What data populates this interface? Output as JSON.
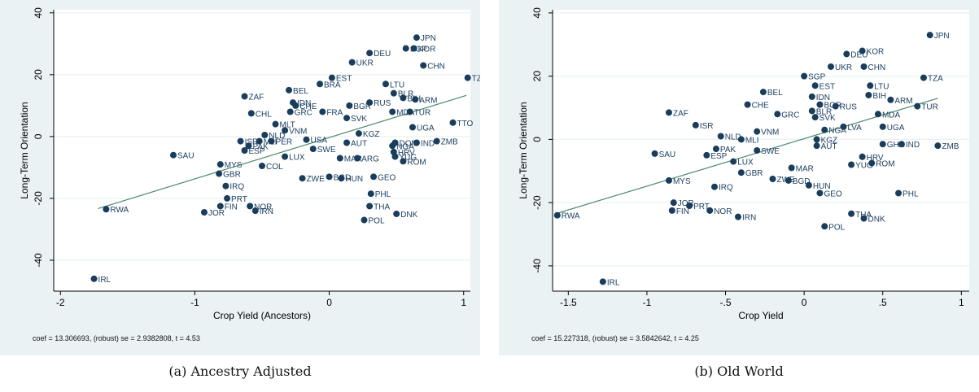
{
  "chart_data": [
    {
      "type": "scatter",
      "caption": "(a)  Ancestry Adjusted",
      "xlabel": "Crop Yield (Ancestors)",
      "ylabel": "Long-Term Orientation",
      "xlim": [
        -2.05,
        1.05
      ],
      "ylim": [
        -50,
        41
      ],
      "xticks": [
        -2,
        -1,
        0,
        1
      ],
      "xtick_labels": [
        "-2",
        "-1",
        "0",
        "1"
      ],
      "yticks": [
        -40,
        -20,
        0,
        20,
        40
      ],
      "ytick_labels": [
        "-40",
        "-20",
        "0",
        "20",
        "40"
      ],
      "grid": true,
      "fit_line": {
        "x": [
          -1.72,
          1.02
        ],
        "y": [
          -23.3,
          13.3
        ]
      },
      "note": "coef = 13.306693, (robust) se = 2.9382808, t = 4.53",
      "colors": {
        "point": "#1a3d5c",
        "line": "#4a8a6a",
        "background": "#eaf2f3",
        "plot": "#ffffff"
      },
      "points": [
        {
          "label": "JPN",
          "x": 0.65,
          "y": 32
        },
        {
          "label": "SGP",
          "x": 0.57,
          "y": 28.5
        },
        {
          "label": "KOR",
          "x": 0.63,
          "y": 28.5
        },
        {
          "label": "DEU",
          "x": 0.3,
          "y": 27
        },
        {
          "label": "UKR",
          "x": 0.17,
          "y": 24
        },
        {
          "label": "CHN",
          "x": 0.7,
          "y": 23
        },
        {
          "label": "TZA",
          "x": 1.03,
          "y": 19
        },
        {
          "label": "EST",
          "x": 0.02,
          "y": 19
        },
        {
          "label": "BRA",
          "x": -0.07,
          "y": 17
        },
        {
          "label": "LTU",
          "x": 0.42,
          "y": 17
        },
        {
          "label": "BLR",
          "x": 0.48,
          "y": 14
        },
        {
          "label": "BIH",
          "x": 0.55,
          "y": 12.5
        },
        {
          "label": "ARM",
          "x": 0.64,
          "y": 12
        },
        {
          "label": "BEL",
          "x": -0.3,
          "y": 15
        },
        {
          "label": "ZAF",
          "x": -0.63,
          "y": 13
        },
        {
          "label": "IDN",
          "x": -0.27,
          "y": 11
        },
        {
          "label": "CHE",
          "x": -0.25,
          "y": 10
        },
        {
          "label": "BGR",
          "x": 0.15,
          "y": 10
        },
        {
          "label": "RUS",
          "x": 0.3,
          "y": 11
        },
        {
          "label": "GRC",
          "x": -0.29,
          "y": 8
        },
        {
          "label": "FRA",
          "x": -0.05,
          "y": 8
        },
        {
          "label": "MDA",
          "x": 0.47,
          "y": 8
        },
        {
          "label": "TUR",
          "x": 0.6,
          "y": 8
        },
        {
          "label": "SVK",
          "x": 0.13,
          "y": 6
        },
        {
          "label": "CHL",
          "x": -0.58,
          "y": 7.5
        },
        {
          "label": "MLT",
          "x": -0.4,
          "y": 4
        },
        {
          "label": "UGA",
          "x": 0.62,
          "y": 3
        },
        {
          "label": "TTO",
          "x": 0.92,
          "y": 4.5
        },
        {
          "label": "VNM",
          "x": -0.33,
          "y": 2
        },
        {
          "label": "KGZ",
          "x": 0.22,
          "y": 1
        },
        {
          "label": "NLD",
          "x": -0.48,
          "y": 0.5
        },
        {
          "label": "ISR",
          "x": -0.66,
          "y": -1.5
        },
        {
          "label": "MLI",
          "x": -0.52,
          "y": -1.5
        },
        {
          "label": "PER",
          "x": -0.43,
          "y": -1.5
        },
        {
          "label": "USA",
          "x": -0.17,
          "y": -1
        },
        {
          "label": "AUT",
          "x": 0.13,
          "y": -2
        },
        {
          "label": "DOM",
          "x": 0.49,
          "y": -2
        },
        {
          "label": "IND",
          "x": 0.65,
          "y": -2
        },
        {
          "label": "ZMB",
          "x": 0.8,
          "y": -1.5
        },
        {
          "label": "NGA",
          "x": 0.47,
          "y": -3
        },
        {
          "label": "PAK",
          "x": -0.6,
          "y": -3
        },
        {
          "label": "ESP",
          "x": -0.63,
          "y": -4.5
        },
        {
          "label": "SWE",
          "x": -0.12,
          "y": -4
        },
        {
          "label": "SAU",
          "x": -1.16,
          "y": -6
        },
        {
          "label": "LUX",
          "x": -0.33,
          "y": -6.5
        },
        {
          "label": "YUG",
          "x": 0.49,
          "y": -6.5
        },
        {
          "label": "HRV",
          "x": 0.48,
          "y": -5
        },
        {
          "label": "MAR",
          "x": 0.08,
          "y": -7
        },
        {
          "label": "ARG",
          "x": 0.21,
          "y": -7
        },
        {
          "label": "ROM",
          "x": 0.55,
          "y": -8
        },
        {
          "label": "MYS",
          "x": -0.81,
          "y": -9
        },
        {
          "label": "COL",
          "x": -0.5,
          "y": -9.5
        },
        {
          "label": "GBR",
          "x": -0.82,
          "y": -12
        },
        {
          "label": "ZWE",
          "x": -0.2,
          "y": -13.5
        },
        {
          "label": "BGD",
          "x": 0.0,
          "y": -13
        },
        {
          "label": "HUN",
          "x": 0.09,
          "y": -13.5
        },
        {
          "label": "GEO",
          "x": 0.33,
          "y": -13
        },
        {
          "label": "IRQ",
          "x": -0.77,
          "y": -16
        },
        {
          "label": "PHL",
          "x": 0.31,
          "y": -18.5
        },
        {
          "label": "PRT",
          "x": -0.76,
          "y": -20
        },
        {
          "label": "THA",
          "x": 0.3,
          "y": -22.5
        },
        {
          "label": "NOR",
          "x": -0.59,
          "y": -22.5
        },
        {
          "label": "FIN",
          "x": -0.81,
          "y": -22.5
        },
        {
          "label": "IRN",
          "x": -0.55,
          "y": -24
        },
        {
          "label": "DNK",
          "x": 0.5,
          "y": -25
        },
        {
          "label": "JOR",
          "x": -0.93,
          "y": -24.5
        },
        {
          "label": "RWA",
          "x": -1.66,
          "y": -23.5
        },
        {
          "label": "POL",
          "x": 0.26,
          "y": -27
        },
        {
          "label": "IRL",
          "x": -1.75,
          "y": -46
        }
      ]
    },
    {
      "type": "scatter",
      "caption": "(b)  Old World",
      "xlabel": "Crop Yield",
      "ylabel": "Long-Term Orientation",
      "xlim": [
        -1.6,
        1.05
      ],
      "ylim": [
        -48,
        41
      ],
      "xticks": [
        -1.5,
        -1,
        -0.5,
        0,
        0.5,
        1
      ],
      "xtick_labels": [
        "-1.5",
        "-1",
        "-.5",
        "0",
        ".5",
        "1"
      ],
      "yticks": [
        -40,
        -20,
        0,
        20,
        40
      ],
      "ytick_labels": [
        "-40",
        "-20",
        "0",
        "20",
        "40"
      ],
      "grid": true,
      "fit_line": {
        "x": [
          -1.58,
          0.85
        ],
        "y": [
          -23.5,
          13
        ]
      },
      "note": "coef = 15.227318, (robust) se = 3.5842642, t = 4.25",
      "colors": {
        "point": "#1a3d5c",
        "line": "#4a8a6a",
        "background": "#eaf2f3",
        "plot": "#ffffff"
      },
      "points": [
        {
          "label": "JPN",
          "x": 0.8,
          "y": 33
        },
        {
          "label": "KOR",
          "x": 0.37,
          "y": 28
        },
        {
          "label": "DEU",
          "x": 0.27,
          "y": 27
        },
        {
          "label": "UKR",
          "x": 0.17,
          "y": 23
        },
        {
          "label": "CHN",
          "x": 0.38,
          "y": 23
        },
        {
          "label": "SGP",
          "x": 0.0,
          "y": 20
        },
        {
          "label": "TZA",
          "x": 0.76,
          "y": 19.5
        },
        {
          "label": "EST",
          "x": 0.07,
          "y": 17
        },
        {
          "label": "LTU",
          "x": 0.42,
          "y": 17
        },
        {
          "label": "BEL",
          "x": -0.26,
          "y": 15
        },
        {
          "label": "BIH",
          "x": 0.41,
          "y": 14
        },
        {
          "label": "IDN",
          "x": 0.05,
          "y": 13.5
        },
        {
          "label": "ARM",
          "x": 0.55,
          "y": 12.5
        },
        {
          "label": "CHE",
          "x": -0.36,
          "y": 11
        },
        {
          "label": "BGR",
          "x": 0.1,
          "y": 11
        },
        {
          "label": "RUS",
          "x": 0.2,
          "y": 10.5
        },
        {
          "label": "TUR",
          "x": 0.72,
          "y": 10.5
        },
        {
          "label": "GRC",
          "x": -0.17,
          "y": 8
        },
        {
          "label": "BLR",
          "x": 0.05,
          "y": 9
        },
        {
          "label": "SVK",
          "x": 0.07,
          "y": 7
        },
        {
          "label": "MDA",
          "x": 0.47,
          "y": 8
        },
        {
          "label": "ZAF",
          "x": -0.86,
          "y": 8.5
        },
        {
          "label": "ISR",
          "x": -0.69,
          "y": 4.5
        },
        {
          "label": "UGA",
          "x": 0.5,
          "y": 4
        },
        {
          "label": "LVA",
          "x": 0.25,
          "y": 4
        },
        {
          "label": "NGA",
          "x": 0.13,
          "y": 3
        },
        {
          "label": "VNM",
          "x": -0.3,
          "y": 2.5
        },
        {
          "label": "NLD",
          "x": -0.53,
          "y": 1
        },
        {
          "label": "MLI",
          "x": -0.4,
          "y": 0
        },
        {
          "label": "KGZ",
          "x": 0.08,
          "y": 0
        },
        {
          "label": "AUT",
          "x": 0.08,
          "y": -2
        },
        {
          "label": "GHA",
          "x": 0.5,
          "y": -1.5
        },
        {
          "label": "IND",
          "x": 0.62,
          "y": -1.5
        },
        {
          "label": "ZMB",
          "x": 0.85,
          "y": -2
        },
        {
          "label": "PAK",
          "x": -0.56,
          "y": -3
        },
        {
          "label": "SWE",
          "x": -0.3,
          "y": -3.5
        },
        {
          "label": "SAU",
          "x": -0.95,
          "y": -4.5
        },
        {
          "label": "ESP",
          "x": -0.62,
          "y": -5
        },
        {
          "label": "HRV",
          "x": 0.37,
          "y": -5.5
        },
        {
          "label": "LUX",
          "x": -0.45,
          "y": -7
        },
        {
          "label": "ROM",
          "x": 0.43,
          "y": -7.5
        },
        {
          "label": "YUG",
          "x": 0.3,
          "y": -8
        },
        {
          "label": "MAR",
          "x": -0.08,
          "y": -9
        },
        {
          "label": "GBR",
          "x": -0.4,
          "y": -10.5
        },
        {
          "label": "ZWE",
          "x": -0.2,
          "y": -12.5
        },
        {
          "label": "BGD",
          "x": -0.1,
          "y": -13
        },
        {
          "label": "MYS",
          "x": -0.86,
          "y": -13
        },
        {
          "label": "HUN",
          "x": 0.03,
          "y": -14.5
        },
        {
          "label": "IRQ",
          "x": -0.57,
          "y": -15
        },
        {
          "label": "GEO",
          "x": 0.1,
          "y": -17
        },
        {
          "label": "PHL",
          "x": 0.6,
          "y": -17
        },
        {
          "label": "JOR",
          "x": -0.83,
          "y": -20
        },
        {
          "label": "PRT",
          "x": -0.73,
          "y": -21
        },
        {
          "label": "FIN",
          "x": -0.84,
          "y": -22.5
        },
        {
          "label": "NOR",
          "x": -0.6,
          "y": -22.5
        },
        {
          "label": "THA",
          "x": 0.3,
          "y": -23.5
        },
        {
          "label": "DNK",
          "x": 0.38,
          "y": -25
        },
        {
          "label": "RWA",
          "x": -1.57,
          "y": -24
        },
        {
          "label": "IRN",
          "x": -0.42,
          "y": -24.5
        },
        {
          "label": "POL",
          "x": 0.13,
          "y": -27.5
        },
        {
          "label": "IRL",
          "x": -1.28,
          "y": -45
        }
      ]
    }
  ]
}
